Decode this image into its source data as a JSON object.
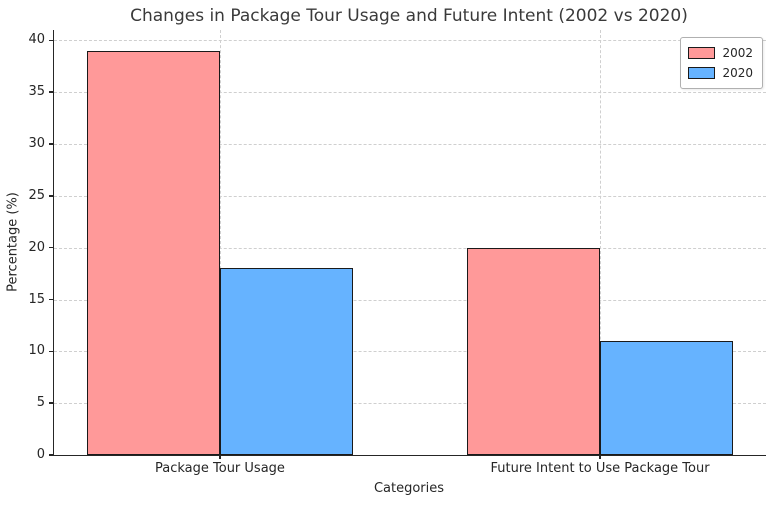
{
  "chart_data": {
    "type": "bar",
    "title": "Changes in Package Tour Usage and Future Intent (2002 vs 2020)",
    "categories": [
      "Package Tour Usage",
      "Future Intent to Use Package Tour"
    ],
    "series": [
      {
        "name": "2002",
        "color": "#FF9999",
        "values": [
          39,
          20
        ]
      },
      {
        "name": "2020",
        "color": "#66B3FF",
        "values": [
          18,
          11
        ]
      }
    ],
    "xlabel": "Categories",
    "ylabel": "Percentage (%)",
    "ylim": [
      0,
      41
    ],
    "yticks": [
      0,
      5,
      10,
      15,
      20,
      25,
      30,
      35,
      40
    ],
    "grid": true,
    "grid_style": "dashed",
    "grid_color": "#cfcfcf",
    "bar_edge_color": "#1a1a1a",
    "background_color": "#ffffff",
    "title_color": "#3a3a3a",
    "legend_position": "upper right"
  }
}
